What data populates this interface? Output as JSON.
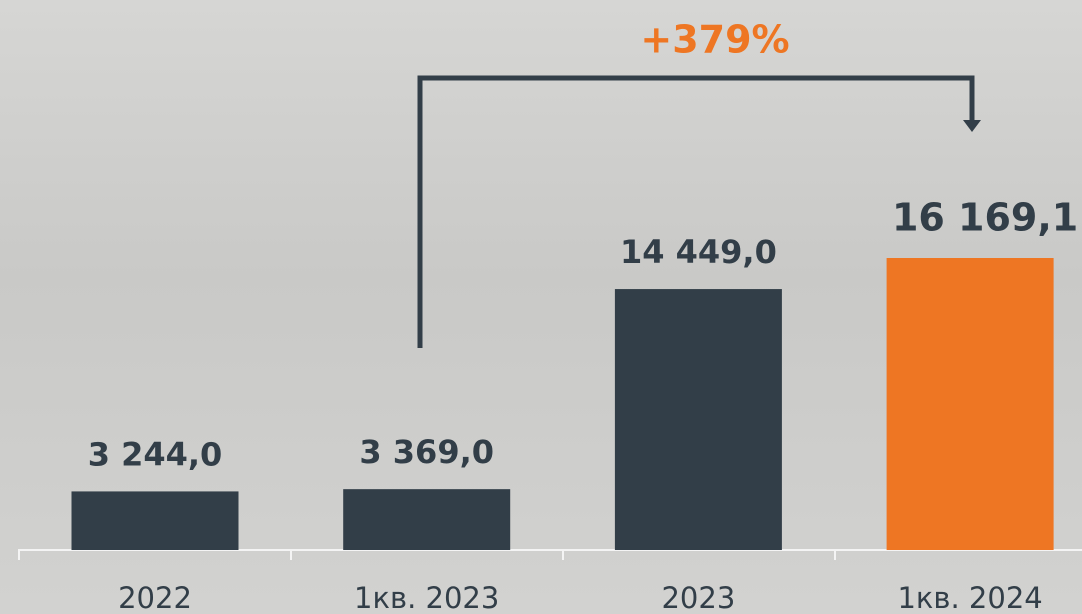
{
  "chart_data": {
    "type": "bar",
    "annotation": "+379%",
    "categories": [
      "2022",
      "1кв. 2023",
      "2023",
      "1кв. 2024"
    ],
    "values": [
      3244.0,
      3369.0,
      14449.0,
      16169.1
    ],
    "value_labels": [
      "3 244,0",
      "3 369,0",
      "14 449,0",
      "16 169,1"
    ],
    "colors": [
      "#323e48",
      "#323e48",
      "#323e48",
      "#ee7623"
    ],
    "annotation_color": "#ee7623"
  }
}
